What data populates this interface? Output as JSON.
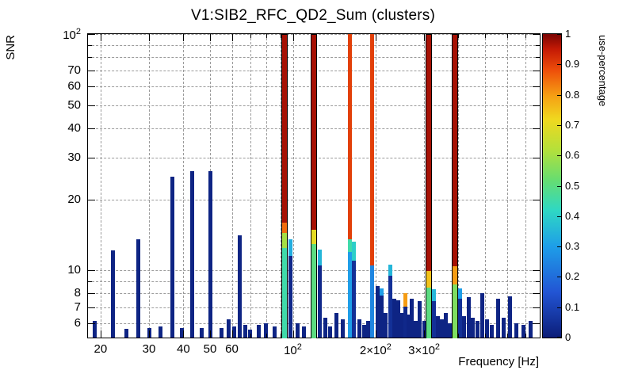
{
  "chart_data": {
    "type": "bar",
    "title": "V1:SIB2_RFC_QD2_Sum (clusters)",
    "xlabel": "Frequency [Hz]",
    "ylabel": "SNR",
    "zlabel": "use-percentage",
    "xscale": "log",
    "yscale": "log",
    "xlim": [
      18,
      790
    ],
    "ylim": [
      5.2,
      100
    ],
    "zlim": [
      0,
      1
    ],
    "grid": true,
    "legend_position": "right-colorbar",
    "palette": [
      [
        0,
        "#0b1d78"
      ],
      [
        0.15,
        "#2255d4"
      ],
      [
        0.3,
        "#1e9ee8"
      ],
      [
        0.42,
        "#2fd8c3"
      ],
      [
        0.52,
        "#67dd70"
      ],
      [
        0.62,
        "#b5e03a"
      ],
      [
        0.72,
        "#f0d81f"
      ],
      [
        0.8,
        "#f59c13"
      ],
      [
        0.88,
        "#ee4f0a"
      ],
      [
        0.95,
        "#c41a05"
      ],
      [
        1,
        "#7a0403"
      ]
    ],
    "x_ticks": [
      {
        "v": 20,
        "l": [
          "20"
        ]
      },
      {
        "v": 30,
        "l": [
          "30"
        ]
      },
      {
        "v": 40,
        "l": [
          "40"
        ]
      },
      {
        "v": 50,
        "l": [
          "50"
        ]
      },
      {
        "v": 60,
        "l": [
          "60"
        ]
      },
      {
        "v": 70
      },
      {
        "v": 80
      },
      {
        "v": 90
      },
      {
        "v": 100,
        "l": [
          "10",
          "2"
        ]
      },
      {
        "v": 200,
        "l": [
          "2×10",
          "2"
        ]
      },
      {
        "v": 300,
        "l": [
          "3×10",
          "2"
        ]
      },
      {
        "v": 400
      },
      {
        "v": 500
      },
      {
        "v": 600
      },
      {
        "v": 700
      }
    ],
    "y_ticks": [
      {
        "v": 6,
        "l": [
          "6"
        ]
      },
      {
        "v": 7,
        "l": [
          "7"
        ]
      },
      {
        "v": 8,
        "l": [
          "8"
        ]
      },
      {
        "v": 9
      },
      {
        "v": 10,
        "l": [
          "10"
        ]
      },
      {
        "v": 20,
        "l": [
          "20"
        ]
      },
      {
        "v": 30,
        "l": [
          "30"
        ]
      },
      {
        "v": 40,
        "l": [
          "40"
        ]
      },
      {
        "v": 50,
        "l": [
          "50"
        ]
      },
      {
        "v": 60,
        "l": [
          "60"
        ]
      },
      {
        "v": 70,
        "l": [
          "70"
        ]
      },
      {
        "v": 80
      },
      {
        "v": 90
      },
      {
        "v": 100,
        "l": [
          "10",
          "2"
        ]
      }
    ],
    "z_ticks": [
      {
        "v": 0,
        "l": "0"
      },
      {
        "v": 0.1,
        "l": "0.1"
      },
      {
        "v": 0.2,
        "l": "0.2"
      },
      {
        "v": 0.3,
        "l": "0.3"
      },
      {
        "v": 0.4,
        "l": "0.4"
      },
      {
        "v": 0.5,
        "l": "0.5"
      },
      {
        "v": 0.6,
        "l": "0.6"
      },
      {
        "v": 0.7,
        "l": "0.7"
      },
      {
        "v": 0.8,
        "l": "0.8"
      },
      {
        "v": 0.9,
        "l": "0.9"
      },
      {
        "v": 1,
        "l": "1"
      }
    ],
    "bars": [
      {
        "f": 19,
        "s": 6.1,
        "p": 0.02
      },
      {
        "f": 22.2,
        "s": 12.2,
        "p": 0.02
      },
      {
        "f": 24.8,
        "s": 5.65,
        "p": 0.02
      },
      {
        "f": 27.4,
        "s": 13.6,
        "p": 0.02
      },
      {
        "f": 30,
        "s": 5.7,
        "p": 0.02
      },
      {
        "f": 33,
        "s": 5.8,
        "p": 0.02
      },
      {
        "f": 36.5,
        "s": 25,
        "p": 0.02
      },
      {
        "f": 39.5,
        "s": 5.7,
        "p": 0.02
      },
      {
        "f": 43,
        "s": 26.4,
        "p": 0.02
      },
      {
        "f": 46.5,
        "s": 5.7,
        "p": 0.02
      },
      {
        "f": 50,
        "s": 26.4,
        "p": 0.02
      },
      {
        "f": 55,
        "s": 5.7,
        "p": 0.02
      },
      {
        "f": 58.5,
        "s": 6.2,
        "p": 0.02
      },
      {
        "f": 61,
        "s": 5.8,
        "p": 0.02
      },
      {
        "f": 64,
        "s": 14.1,
        "p": 0.02
      },
      {
        "f": 67,
        "s": 5.9,
        "p": 0.02
      },
      {
        "f": 70,
        "s": 5.6,
        "p": 0.02
      },
      {
        "f": 75,
        "s": 5.9,
        "p": 0.02
      },
      {
        "f": 80,
        "s": 6.0,
        "p": 0.02
      },
      {
        "f": 86,
        "s": 5.8,
        "p": 0.02
      },
      {
        "f": 93,
        "s": 100,
        "w": 8,
        "o": 1,
        "seg": [
          [
            5.2,
            12.5,
            0.45
          ],
          [
            12.5,
            14.5,
            0.6
          ],
          [
            14.5,
            16,
            0.85
          ],
          [
            16,
            100,
            0.97
          ]
        ]
      },
      {
        "f": 98,
        "s": 13.5,
        "seg": [
          [
            5.2,
            11.5,
            0.03
          ],
          [
            11.5,
            13.5,
            0.33
          ]
        ]
      },
      {
        "f": 104,
        "s": 6.0,
        "p": 0.02
      },
      {
        "f": 110,
        "s": 5.8,
        "p": 0.02
      },
      {
        "f": 119,
        "s": 100,
        "w": 8,
        "o": 1,
        "seg": [
          [
            5.2,
            13,
            0.5
          ],
          [
            13,
            15,
            0.7
          ],
          [
            15,
            100,
            0.97
          ]
        ]
      },
      {
        "f": 125,
        "s": 12.3,
        "seg": [
          [
            5.2,
            10.5,
            0.03
          ],
          [
            10.5,
            12.3,
            0.35
          ]
        ]
      },
      {
        "f": 131,
        "s": 6.3,
        "p": 0.02
      },
      {
        "f": 137,
        "s": 5.8,
        "p": 0.02
      },
      {
        "f": 144,
        "s": 6.6,
        "p": 0.02
      },
      {
        "f": 152,
        "s": 6.2,
        "p": 0.02
      },
      {
        "f": 161,
        "s": 100,
        "w": 5,
        "seg": [
          [
            5.2,
            12,
            0.3
          ],
          [
            12,
            13.5,
            0.45
          ],
          [
            13.5,
            100,
            0.9
          ]
        ]
      },
      {
        "f": 167,
        "s": 13.2,
        "seg": [
          [
            5.2,
            11,
            0.05
          ],
          [
            11,
            13.2,
            0.4
          ]
        ]
      },
      {
        "f": 174,
        "s": 6.2,
        "p": 0.02
      },
      {
        "f": 182,
        "s": 5.9,
        "p": 0.02
      },
      {
        "f": 188,
        "s": 6.1,
        "p": 0.02
      },
      {
        "f": 194,
        "s": 100,
        "w": 5,
        "seg": [
          [
            5.2,
            10.5,
            0.25
          ],
          [
            10.5,
            100,
            0.9
          ]
        ]
      },
      {
        "f": 203,
        "s": 8.6,
        "p": 0.02
      },
      {
        "f": 210,
        "s": 8.4,
        "seg": [
          [
            5.2,
            7.8,
            0.02
          ],
          [
            7.8,
            8.4,
            0.3
          ]
        ]
      },
      {
        "f": 218,
        "s": 6.6,
        "p": 0.02
      },
      {
        "f": 226,
        "s": 10.6,
        "seg": [
          [
            5.2,
            9.5,
            0.05
          ],
          [
            9.5,
            10.6,
            0.35
          ]
        ]
      },
      {
        "f": 233,
        "s": 7.6,
        "p": 0.02
      },
      {
        "f": 241,
        "s": 7.5,
        "p": 0.02
      },
      {
        "f": 248,
        "s": 6.6,
        "p": 0.02
      },
      {
        "f": 256,
        "s": 8.0,
        "seg": [
          [
            5.2,
            7,
            0.03
          ],
          [
            7,
            8,
            0.8
          ]
        ]
      },
      {
        "f": 263,
        "s": 6.5,
        "p": 0.02
      },
      {
        "f": 271,
        "s": 7.6,
        "p": 0.02
      },
      {
        "f": 280,
        "s": 6.1,
        "p": 0.02
      },
      {
        "f": 290,
        "s": 7.4,
        "p": 0.02
      },
      {
        "f": 300,
        "s": 6.1,
        "p": 0.02
      },
      {
        "f": 312,
        "s": 100,
        "w": 8,
        "o": 1,
        "seg": [
          [
            5.2,
            8.5,
            0.5
          ],
          [
            8.5,
            10,
            0.75
          ],
          [
            10,
            100,
            0.97
          ]
        ]
      },
      {
        "f": 325,
        "s": 8.3,
        "seg": [
          [
            5.2,
            7.4,
            0.05
          ],
          [
            7.4,
            8.3,
            0.35
          ]
        ]
      },
      {
        "f": 336,
        "s": 6.4,
        "p": 0.02
      },
      {
        "f": 348,
        "s": 6.2,
        "p": 0.02
      },
      {
        "f": 360,
        "s": 6.6,
        "p": 0.02
      },
      {
        "f": 372,
        "s": 6.0,
        "p": 0.02
      },
      {
        "f": 389,
        "s": 100,
        "w": 8,
        "o": 1,
        "seg": [
          [
            5.2,
            8.8,
            0.55
          ],
          [
            8.8,
            10.5,
            0.8
          ],
          [
            10.5,
            100,
            0.97
          ]
        ]
      },
      {
        "f": 405,
        "s": 8.4,
        "seg": [
          [
            5.2,
            7.6,
            0.05
          ],
          [
            7.6,
            8.4,
            0.3
          ]
        ]
      },
      {
        "f": 420,
        "s": 6.4,
        "p": 0.02
      },
      {
        "f": 436,
        "s": 7.7,
        "p": 0.02
      },
      {
        "f": 452,
        "s": 6.3,
        "p": 0.02
      },
      {
        "f": 468,
        "s": 6.1,
        "p": 0.02
      },
      {
        "f": 488,
        "s": 8.0,
        "p": 0.02
      },
      {
        "f": 508,
        "s": 6.2,
        "p": 0.02
      },
      {
        "f": 530,
        "s": 5.9,
        "p": 0.02
      },
      {
        "f": 556,
        "s": 7.6,
        "p": 0.02
      },
      {
        "f": 585,
        "s": 6.3,
        "p": 0.02
      },
      {
        "f": 615,
        "s": 7.8,
        "p": 0.02
      },
      {
        "f": 648,
        "s": 6.0,
        "p": 0.02
      },
      {
        "f": 690,
        "s": 5.9,
        "p": 0.02
      },
      {
        "f": 730,
        "s": 6.1,
        "p": 0.02
      }
    ]
  }
}
